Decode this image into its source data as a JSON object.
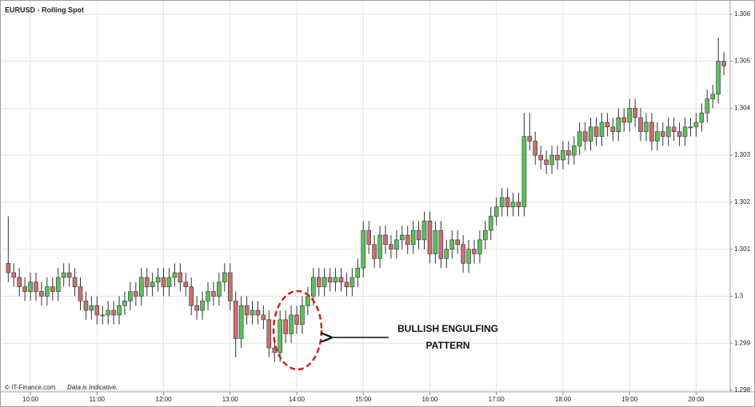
{
  "chart_data": {
    "type": "candlestick",
    "title": "EURUSD - Rolling Spot",
    "x": [
      580,
      585,
      590,
      595,
      600,
      605,
      610,
      615,
      620,
      625,
      630,
      635,
      640,
      645,
      650,
      655,
      660,
      665,
      670,
      675,
      680,
      685,
      690,
      695,
      700,
      705,
      710,
      715,
      720,
      725,
      730,
      735,
      740,
      745,
      750,
      755,
      760,
      765,
      770,
      775,
      780,
      785,
      790,
      795,
      800,
      805,
      810,
      815,
      820,
      825,
      830,
      835,
      840,
      845,
      850,
      855,
      860,
      865,
      870,
      875,
      880,
      885,
      890,
      895,
      900,
      905,
      910,
      915,
      920,
      925,
      930,
      935,
      940,
      945,
      950,
      955,
      960,
      965,
      970,
      975,
      980,
      985,
      990,
      995,
      1000,
      1005,
      1010,
      1015,
      1020,
      1025,
      1030,
      1035,
      1040,
      1045,
      1050,
      1055,
      1060,
      1065,
      1070,
      1075,
      1080,
      1085,
      1090,
      1095,
      1100,
      1105,
      1110,
      1115,
      1120,
      1125,
      1130,
      1135,
      1140,
      1145,
      1150,
      1155,
      1160,
      1165,
      1170,
      1175,
      1180,
      1185,
      1190,
      1195,
      1200,
      1205,
      1210,
      1215,
      1220,
      1225
    ],
    "open": [
      1.3007,
      1.3005,
      1.3004,
      1.3002,
      1.3001,
      1.3003,
      1.3001,
      1.3,
      1.3002,
      1.3001,
      1.3004,
      1.3005,
      1.3004,
      1.3002,
      1.2999,
      1.2997,
      1.2998,
      1.2996,
      1.2996,
      1.2997,
      1.2996,
      1.2998,
      1.2999,
      1.3001,
      1.3,
      1.3004,
      1.3002,
      1.3003,
      1.3004,
      1.3002,
      1.3004,
      1.3005,
      1.3003,
      1.3002,
      1.2998,
      1.2997,
      1.2999,
      1.3001,
      1.3,
      1.3003,
      1.3005,
      1.2999,
      1.2991,
      1.2998,
      1.2996,
      1.2997,
      1.2996,
      1.2995,
      1.2989,
      1.2988,
      1.2995,
      1.2992,
      1.2996,
      1.2994,
      1.2998,
      1.3,
      1.3004,
      1.3002,
      1.3004,
      1.3003,
      1.3004,
      1.3003,
      1.3002,
      1.3004,
      1.3006,
      1.3014,
      1.3011,
      1.3008,
      1.3013,
      1.3011,
      1.301,
      1.3012,
      1.3013,
      1.3011,
      1.3014,
      1.3012,
      1.3016,
      1.3009,
      1.3014,
      1.3008,
      1.301,
      1.3012,
      1.3011,
      1.3007,
      1.301,
      1.3009,
      1.3012,
      1.3014,
      1.3017,
      1.3019,
      1.3021,
      1.3019,
      1.302,
      1.3019,
      1.3034,
      1.3033,
      1.303,
      1.3029,
      1.3028,
      1.303,
      1.3029,
      1.3031,
      1.303,
      1.3032,
      1.3035,
      1.3033,
      1.3036,
      1.3034,
      1.3037,
      1.3036,
      1.3035,
      1.3038,
      1.3037,
      1.304,
      1.3038,
      1.3035,
      1.3037,
      1.3033,
      1.3035,
      1.3034,
      1.3036,
      1.3035,
      1.3034,
      1.3036,
      1.3036,
      1.3037,
      1.3039,
      1.3042,
      1.3043,
      1.305
    ],
    "high": [
      1.3017,
      1.3007,
      1.3006,
      1.3004,
      1.3005,
      1.3005,
      1.3003,
      1.3004,
      1.3004,
      1.3006,
      1.3007,
      1.3007,
      1.3006,
      1.3004,
      1.3001,
      1.3,
      1.3,
      1.2998,
      1.2999,
      1.2999,
      1.3,
      1.3001,
      1.3003,
      1.3003,
      1.3006,
      1.3006,
      1.3005,
      1.3006,
      1.3006,
      1.3006,
      1.3007,
      1.3007,
      1.3005,
      1.3004,
      1.3,
      1.3001,
      1.3003,
      1.3003,
      1.3005,
      1.3007,
      1.3007,
      1.3001,
      1.3,
      1.3,
      1.2999,
      1.2999,
      1.2998,
      1.2997,
      1.2991,
      1.2997,
      1.2997,
      1.2998,
      1.2998,
      1.3,
      1.3002,
      1.3006,
      1.3006,
      1.3006,
      1.3006,
      1.3006,
      1.3006,
      1.3005,
      1.3006,
      1.3008,
      1.3016,
      1.3016,
      1.3013,
      1.3015,
      1.3015,
      1.3013,
      1.3014,
      1.3015,
      1.3015,
      1.3016,
      1.3016,
      1.3018,
      1.3018,
      1.3016,
      1.3016,
      1.3012,
      1.3014,
      1.3014,
      1.3013,
      1.3012,
      1.3012,
      1.3014,
      1.3016,
      1.3019,
      1.3021,
      1.3023,
      1.3023,
      1.3022,
      1.3022,
      1.3039,
      1.3039,
      1.3035,
      1.3032,
      1.3031,
      1.3032,
      1.3032,
      1.3033,
      1.3033,
      1.3034,
      1.3037,
      1.3037,
      1.3038,
      1.3038,
      1.3039,
      1.3039,
      1.3038,
      1.304,
      1.304,
      1.3042,
      1.3042,
      1.304,
      1.3039,
      1.3039,
      1.3037,
      1.3037,
      1.3038,
      1.3038,
      1.3037,
      1.3038,
      1.3038,
      1.3039,
      1.3041,
      1.3044,
      1.3045,
      1.3055,
      1.3052
    ],
    "low": [
      1.3003,
      1.3002,
      1.3,
      1.2999,
      1.2999,
      1.2999,
      1.2998,
      1.2998,
      1.2999,
      1.2999,
      1.3002,
      1.3002,
      1.3,
      1.2997,
      1.2995,
      1.2995,
      1.2994,
      1.2994,
      1.2994,
      1.2994,
      1.2994,
      1.2996,
      1.2997,
      1.2998,
      1.2998,
      1.3,
      1.3,
      1.3001,
      1.3,
      1.3,
      1.3002,
      1.3001,
      1.3,
      1.2996,
      1.2995,
      1.2995,
      1.2997,
      1.2998,
      1.2998,
      1.3001,
      1.2997,
      1.2987,
      1.2989,
      1.2994,
      1.2994,
      1.2994,
      1.2993,
      1.2987,
      1.2986,
      1.2986,
      1.299,
      1.299,
      1.2992,
      1.2992,
      1.2996,
      1.2998,
      1.3,
      1.3,
      1.3001,
      1.3001,
      1.3001,
      1.3,
      1.3,
      1.3002,
      1.3004,
      1.3009,
      1.3006,
      1.3006,
      1.3009,
      1.3008,
      1.3008,
      1.301,
      1.3009,
      1.3009,
      1.301,
      1.301,
      1.3007,
      1.3007,
      1.3006,
      1.3006,
      1.3008,
      1.3009,
      1.3005,
      1.3005,
      1.3007,
      1.3007,
      1.301,
      1.3012,
      1.3015,
      1.3017,
      1.3017,
      1.3017,
      1.3017,
      1.3017,
      1.3031,
      1.3028,
      1.3027,
      1.3026,
      1.3026,
      1.3027,
      1.3027,
      1.3028,
      1.3028,
      1.303,
      1.3031,
      1.3031,
      1.3032,
      1.3032,
      1.3034,
      1.3033,
      1.3033,
      1.3035,
      1.3035,
      1.3036,
      1.3033,
      1.3033,
      1.3031,
      1.3031,
      1.3032,
      1.3032,
      1.3033,
      1.3032,
      1.3032,
      1.3034,
      1.3034,
      1.3035,
      1.3037,
      1.304,
      1.3041,
      1.3047
    ],
    "close": [
      1.3005,
      1.3004,
      1.3002,
      1.3001,
      1.3003,
      1.3001,
      1.3,
      1.3002,
      1.3001,
      1.3004,
      1.3005,
      1.3004,
      1.3002,
      1.2999,
      1.2997,
      1.2998,
      1.2996,
      1.2996,
      1.2997,
      1.2996,
      1.2998,
      1.2999,
      1.3001,
      1.3,
      1.3004,
      1.3002,
      1.3003,
      1.3004,
      1.3002,
      1.3004,
      1.3005,
      1.3003,
      1.3002,
      1.2998,
      1.2997,
      1.2999,
      1.3001,
      1.3,
      1.3003,
      1.3005,
      1.2999,
      1.2991,
      1.2998,
      1.2996,
      1.2997,
      1.2996,
      1.2995,
      1.2989,
      1.2988,
      1.2995,
      1.2992,
      1.2996,
      1.2994,
      1.2998,
      1.3,
      1.3004,
      1.3002,
      1.3004,
      1.3003,
      1.3004,
      1.3003,
      1.3002,
      1.3004,
      1.3006,
      1.3014,
      1.3011,
      1.3008,
      1.3013,
      1.3011,
      1.301,
      1.3012,
      1.3013,
      1.3011,
      1.3014,
      1.3012,
      1.3016,
      1.3009,
      1.3014,
      1.3008,
      1.301,
      1.3012,
      1.3011,
      1.3007,
      1.301,
      1.3009,
      1.3012,
      1.3014,
      1.3017,
      1.3019,
      1.3021,
      1.3019,
      1.302,
      1.3019,
      1.3034,
      1.3033,
      1.303,
      1.3029,
      1.3028,
      1.303,
      1.3029,
      1.3031,
      1.303,
      1.3032,
      1.3035,
      1.3033,
      1.3036,
      1.3034,
      1.3037,
      1.3036,
      1.3035,
      1.3038,
      1.3037,
      1.304,
      1.3038,
      1.3035,
      1.3037,
      1.3033,
      1.3035,
      1.3034,
      1.3036,
      1.3035,
      1.3034,
      1.3036,
      1.3036,
      1.3037,
      1.3039,
      1.3042,
      1.3043,
      1.305,
      1.3049
    ],
    "xlim": [
      574,
      1230
    ],
    "xticks": [
      {
        "value": 600,
        "label": "10:00"
      },
      {
        "value": 660,
        "label": "11:00"
      },
      {
        "value": 720,
        "label": "12:00"
      },
      {
        "value": 780,
        "label": "13:00"
      },
      {
        "value": 840,
        "label": "14:00"
      },
      {
        "value": 900,
        "label": "15:00"
      },
      {
        "value": 960,
        "label": "16:00"
      },
      {
        "value": 1020,
        "label": "17:00"
      },
      {
        "value": 1080,
        "label": "18:00"
      },
      {
        "value": 1140,
        "label": "19:00"
      },
      {
        "value": 1200,
        "label": "20:00"
      }
    ],
    "ylim": [
      1.298,
      1.3062
    ],
    "yticks": [
      1.298,
      1.299,
      1.3,
      1.301,
      1.302,
      1.303,
      1.304,
      1.305,
      1.306
    ],
    "grid": true,
    "up_color": "#5cbf5c",
    "down_color": "#c97070",
    "annotation": [
      "BULLISH ENGULFING",
      "PATTERN"
    ]
  },
  "footer": {
    "source": "© IT-Finance.com",
    "note": "Data is Indicative."
  }
}
